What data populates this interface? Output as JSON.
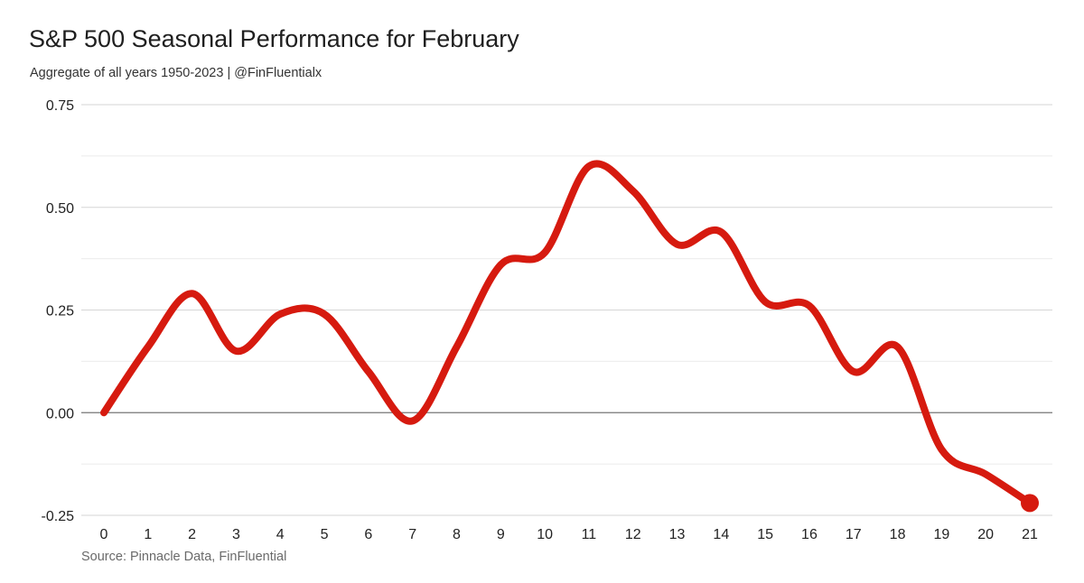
{
  "chart_data": {
    "type": "line",
    "title": "S&P 500 Seasonal Performance for February",
    "subtitle": "Aggregate of all years 1950-2023 | @FinFluentialx",
    "source": "Source: Pinnacle Data, FinFluential",
    "xlabel": "",
    "ylabel": "",
    "x": [
      0,
      1,
      2,
      3,
      4,
      5,
      6,
      7,
      8,
      9,
      10,
      11,
      12,
      13,
      14,
      15,
      16,
      17,
      18,
      19,
      20,
      21
    ],
    "x_tick_labels": [
      "0",
      "1",
      "2",
      "3",
      "4",
      "5",
      "6",
      "7",
      "8",
      "9",
      "10",
      "11",
      "12",
      "13",
      "14",
      "15",
      "16",
      "17",
      "18",
      "19",
      "20",
      "21"
    ],
    "series": [
      {
        "values": [
          0.0,
          0.16,
          0.29,
          0.15,
          0.24,
          0.24,
          0.1,
          -0.02,
          0.16,
          0.36,
          0.39,
          0.6,
          0.54,
          0.41,
          0.44,
          0.27,
          0.26,
          0.1,
          0.16,
          -0.09,
          -0.15,
          -0.22
        ],
        "color": "#d61a0f"
      }
    ],
    "y_ticks": [
      0.75,
      0.5,
      0.25,
      0.0,
      -0.25
    ],
    "y_tick_labels": [
      "0.75",
      "0.50",
      "0.25",
      "0.00",
      "-0.25"
    ],
    "ylim": [
      -0.25,
      0.75
    ],
    "xlim": [
      0,
      21
    ],
    "grid": true,
    "minor_grid": true,
    "end_marker": true
  }
}
